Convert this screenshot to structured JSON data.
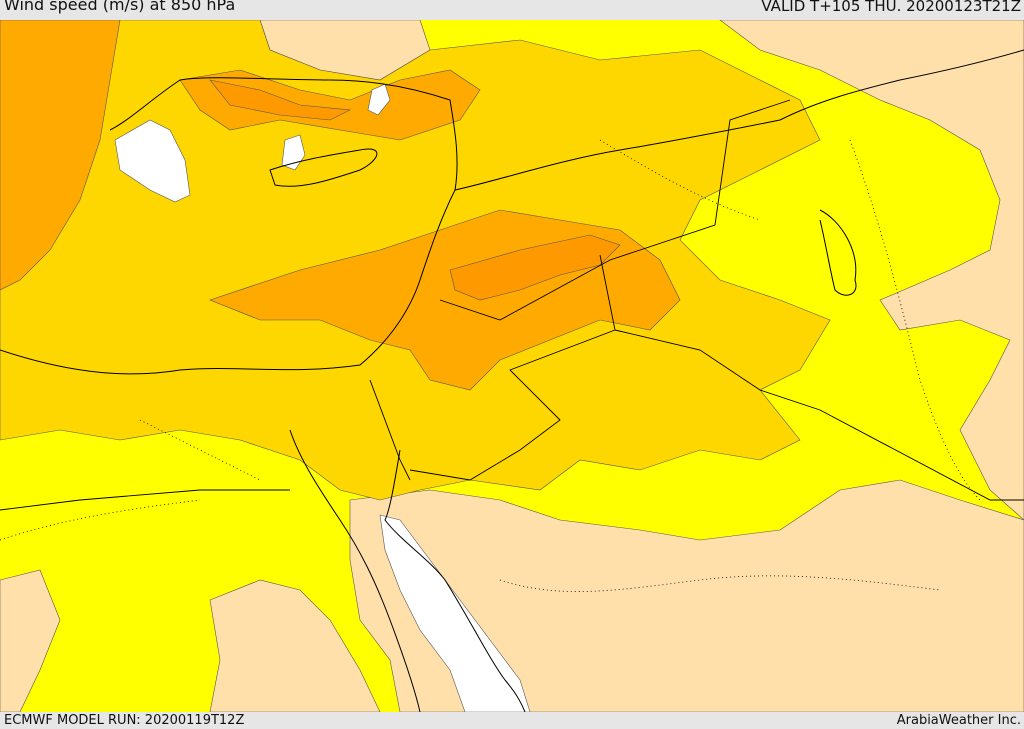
{
  "header": {
    "title": "Wind speed (m/s) at 850 hPa",
    "valid": "VALID T+105 THU. 20200123T21Z"
  },
  "footer": {
    "model_run": "ECMWF MODEL RUN: 20200119T12Z",
    "credit": "ArabiaWeather Inc."
  },
  "colors": {
    "sea_calm": "#ffffff",
    "band_low": "#ffdfaa",
    "band_mid": "#ffff00",
    "band_high": "#ffd700",
    "band_higher": "#ffaa00",
    "band_highest": "#ff9900",
    "boundary": "#000000",
    "background": "#e6e6e6"
  }
}
